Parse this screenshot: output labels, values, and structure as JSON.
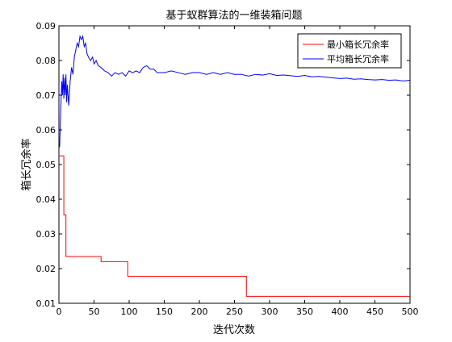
{
  "colors": {
    "min_series": "#ff0000",
    "avg_series": "#0000ff",
    "axes": "#000000",
    "background": "#ffffff"
  },
  "chart_data": {
    "type": "line",
    "title": "基于蚁群算法的一维装箱问题",
    "xlabel": "迭代次数",
    "ylabel": "箱长冗余率",
    "xlim": [
      0,
      500
    ],
    "ylim": [
      0.01,
      0.09
    ],
    "xticks": [
      0,
      50,
      100,
      150,
      200,
      250,
      300,
      350,
      400,
      450,
      500
    ],
    "yticks": [
      0.01,
      0.02,
      0.03,
      0.04,
      0.05,
      0.06,
      0.07,
      0.08,
      0.09
    ],
    "xtick_labels": [
      "0",
      "50",
      "100",
      "150",
      "200",
      "250",
      "300",
      "350",
      "400",
      "450",
      "500"
    ],
    "ytick_labels": [
      "0.01",
      "0.02",
      "0.03",
      "0.04",
      "0.05",
      "0.06",
      "0.07",
      "0.08",
      "0.09"
    ],
    "grid": false,
    "legend_position": "top-right",
    "series": [
      {
        "name": "最小箱长冗余率",
        "color": "#ff0000",
        "x": [
          1,
          7,
          7,
          10,
          10,
          60,
          60,
          98,
          98,
          267,
          267,
          500
        ],
        "y": [
          0.0525,
          0.0525,
          0.0355,
          0.0355,
          0.0235,
          0.0235,
          0.022,
          0.022,
          0.0178,
          0.0178,
          0.012,
          0.012
        ]
      },
      {
        "name": "平均箱长冗余率",
        "color": "#0000ff",
        "x": [
          1,
          2,
          3,
          4,
          5,
          6,
          7,
          8,
          9,
          10,
          11,
          12,
          14,
          16,
          18,
          20,
          22,
          24,
          26,
          28,
          30,
          32,
          34,
          36,
          38,
          40,
          42,
          45,
          48,
          50,
          53,
          56,
          60,
          65,
          70,
          75,
          80,
          85,
          90,
          95,
          100,
          105,
          110,
          115,
          120,
          125,
          130,
          135,
          140,
          150,
          160,
          170,
          180,
          190,
          200,
          210,
          220,
          230,
          240,
          250,
          260,
          270,
          280,
          290,
          300,
          310,
          320,
          330,
          340,
          350,
          360,
          370,
          380,
          390,
          400,
          410,
          420,
          430,
          440,
          450,
          460,
          470,
          480,
          490,
          500
        ],
        "y": [
          0.055,
          0.062,
          0.068,
          0.074,
          0.07,
          0.076,
          0.069,
          0.075,
          0.07,
          0.076,
          0.068,
          0.073,
          0.067,
          0.074,
          0.078,
          0.076,
          0.081,
          0.083,
          0.085,
          0.084,
          0.087,
          0.086,
          0.087,
          0.084,
          0.085,
          0.082,
          0.081,
          0.08,
          0.081,
          0.079,
          0.08,
          0.0785,
          0.078,
          0.077,
          0.0765,
          0.0755,
          0.0765,
          0.076,
          0.0765,
          0.0755,
          0.077,
          0.0765,
          0.077,
          0.0765,
          0.078,
          0.0785,
          0.0775,
          0.0775,
          0.0765,
          0.0765,
          0.077,
          0.0765,
          0.076,
          0.0765,
          0.0765,
          0.076,
          0.0765,
          0.076,
          0.0765,
          0.076,
          0.076,
          0.0755,
          0.076,
          0.0758,
          0.0762,
          0.0757,
          0.0758,
          0.0756,
          0.0754,
          0.0757,
          0.0753,
          0.0754,
          0.0752,
          0.075,
          0.0748,
          0.0749,
          0.0746,
          0.0747,
          0.0745,
          0.0744,
          0.0745,
          0.0743,
          0.0744,
          0.0741,
          0.0743
        ]
      }
    ]
  }
}
